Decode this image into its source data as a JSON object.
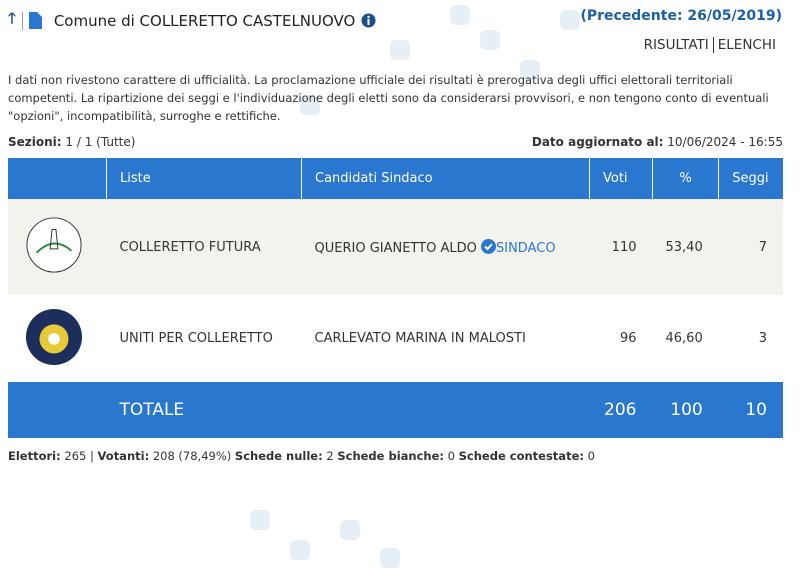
{
  "header": {
    "title": "Comune di COLLERETTO CASTELNUOVO",
    "previous": "(Precedente: 26/05/2019)",
    "tabs": [
      "RISULTATI",
      "ELENCHI"
    ]
  },
  "notice": "I dati non rivestono carattere di ufficialità. La proclamazione ufficiale dei risultati è prerogativa degli uffici elettorali territoriali competenti. La ripartizione dei seggi e l'individuazione degli eletti sono da considerarsi provvisori, e non tengono conto di eventuali \"opzioni\", incompatibilità, surroghe e rettifiche.",
  "sezioni": {
    "label": "Sezioni:",
    "value": "1 / 1 (Tutte)"
  },
  "updated": {
    "label": "Dato aggiornato al:",
    "value": "10/06/2024 - 16:55"
  },
  "table": {
    "headers": [
      "",
      "Liste",
      "Candidati Sindaco",
      "Voti",
      "%",
      "Seggi"
    ],
    "rows": [
      {
        "lista": "COLLERETTO FUTURA",
        "candidato": "QUERIO GIANETTO ALDO",
        "badge": "SINDACO",
        "voti": "110",
        "pct": "53,40",
        "seggi": "7"
      },
      {
        "lista": "UNITI PER COLLERETTO",
        "candidato": "CARLEVATO MARINA IN MALOSTI",
        "voti": "96",
        "pct": "46,60",
        "seggi": "3"
      }
    ],
    "total": {
      "label": "TOTALE",
      "voti": "206",
      "pct": "100",
      "seggi": "10"
    }
  },
  "footer": {
    "elettori_l": "Elettori:",
    "elettori": "265",
    "votanti_l": "Votanti:",
    "votanti": "208 (78,49%)",
    "nulle_l": "Schede nulle:",
    "nulle": "2",
    "bianche_l": "Schede bianche:",
    "bianche": "0",
    "contestate_l": "Schede contestate:",
    "contestate": "0"
  }
}
